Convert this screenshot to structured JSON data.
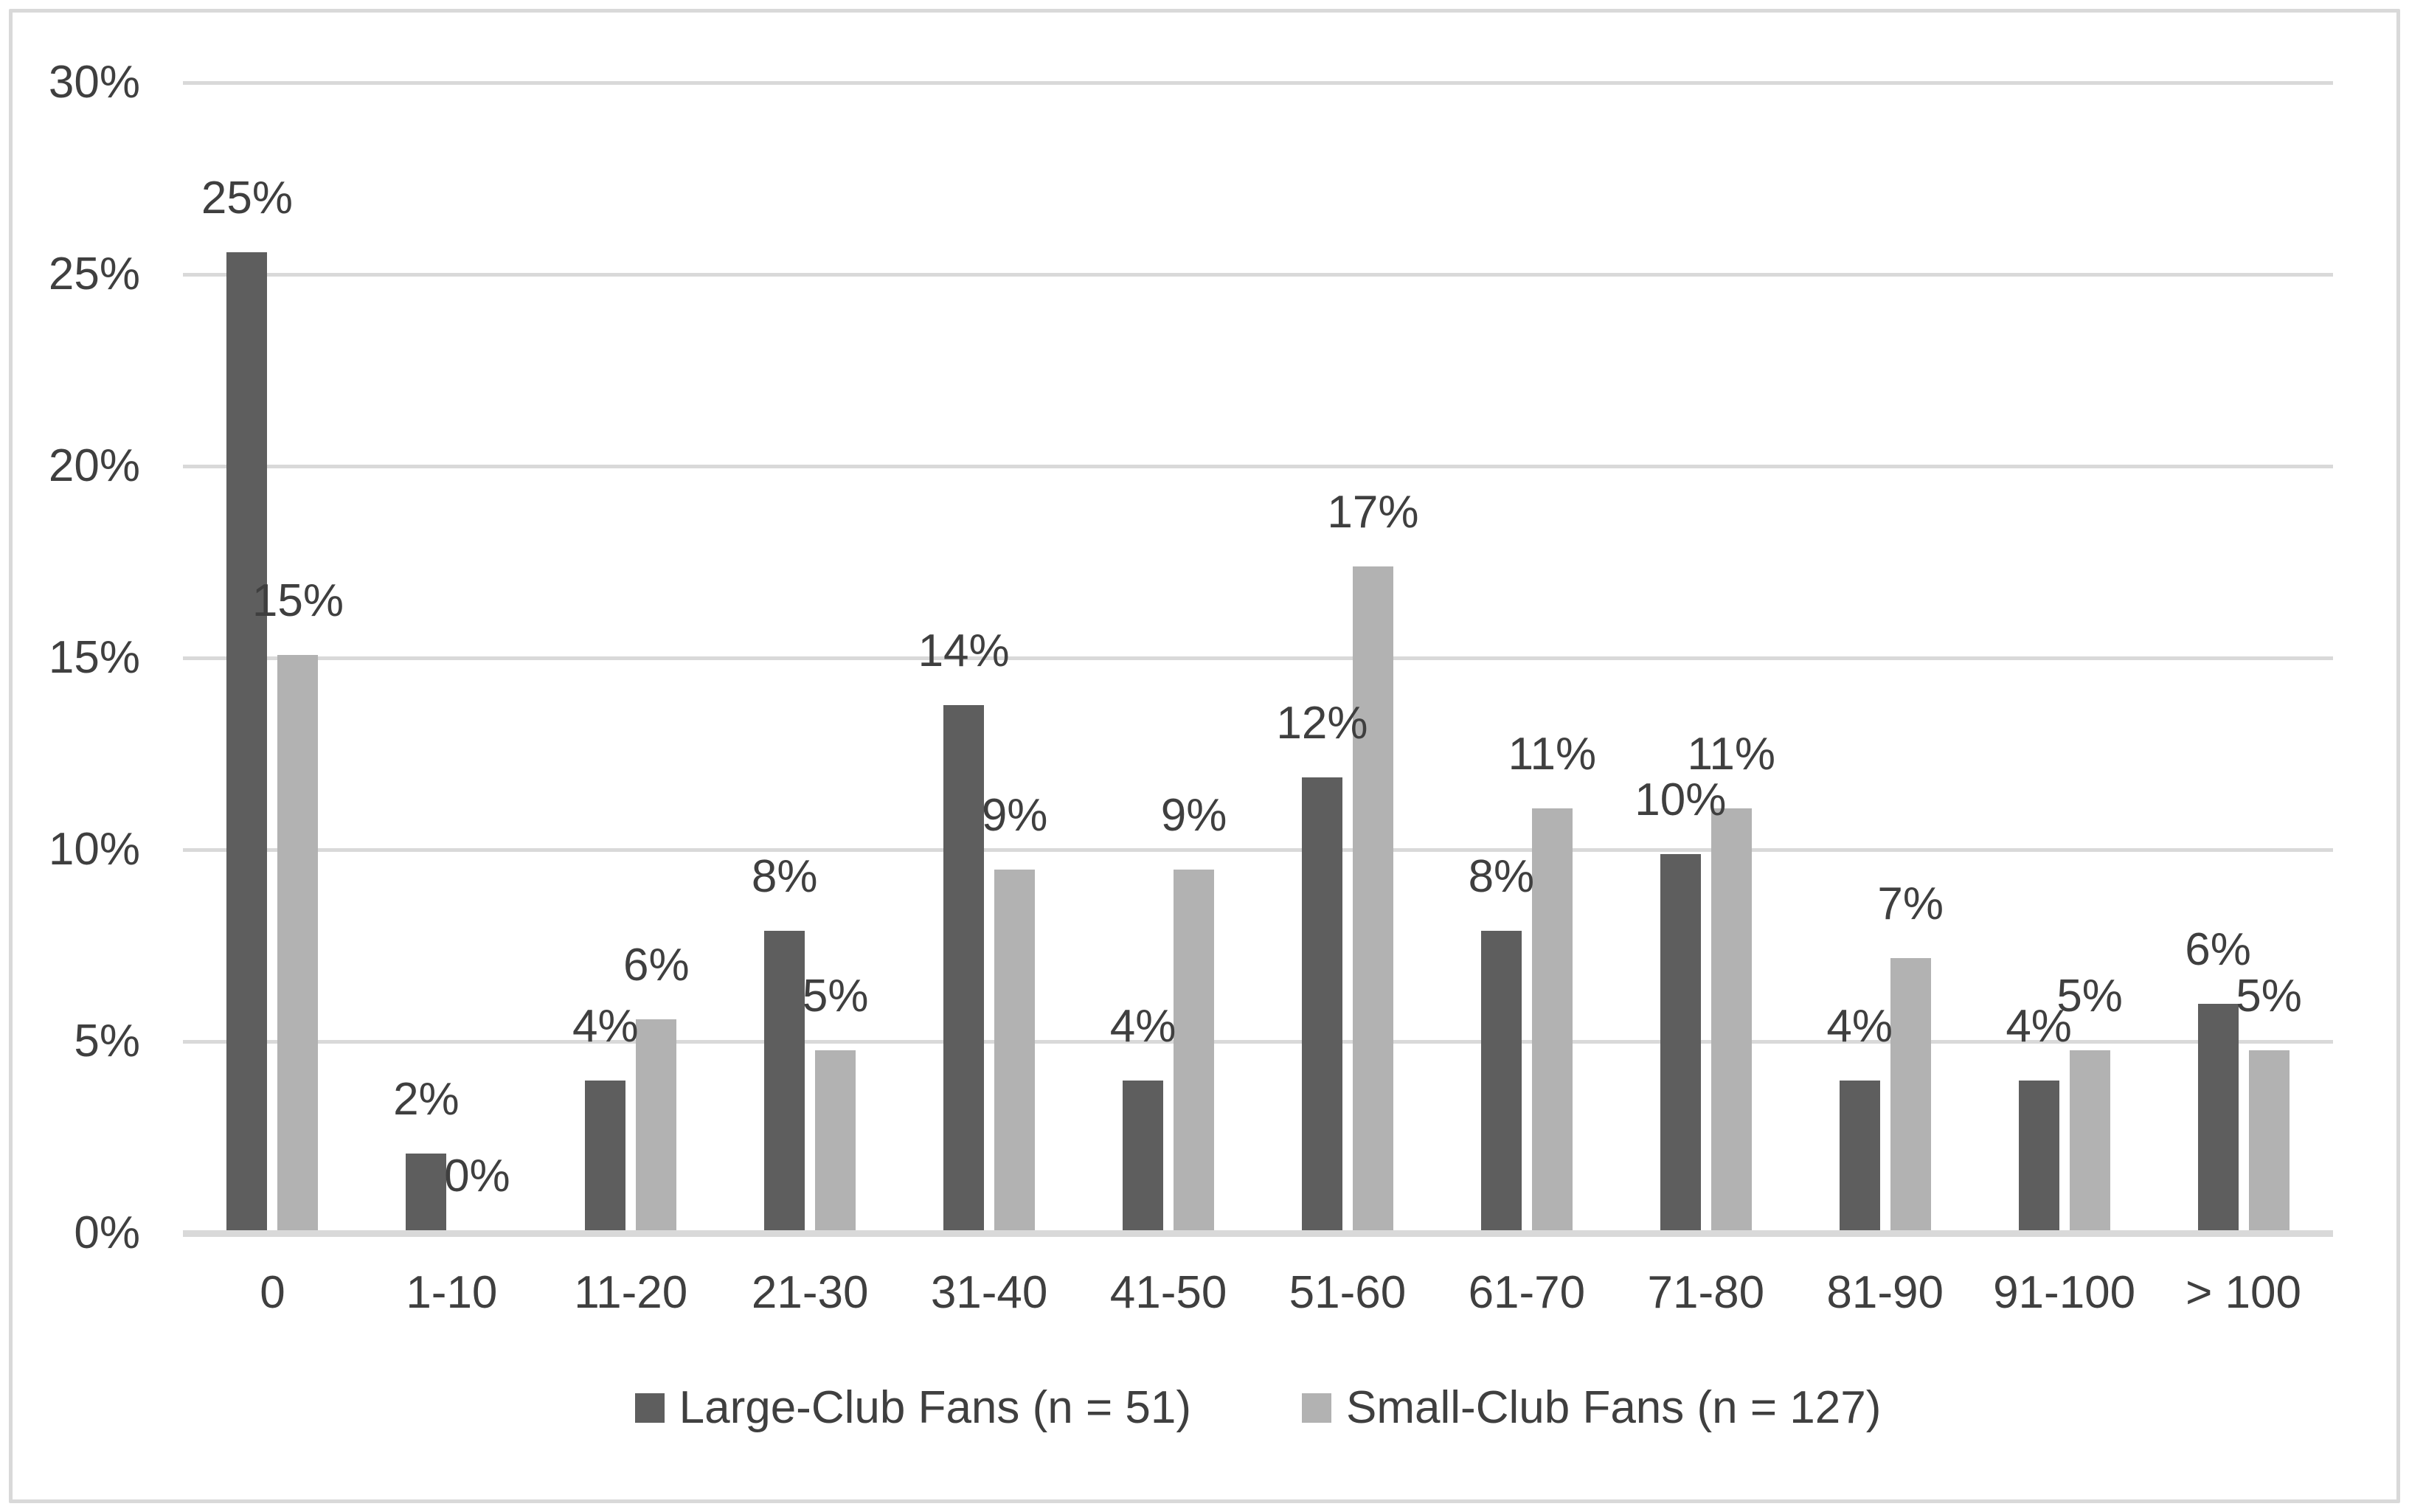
{
  "chart_data": {
    "type": "bar",
    "categories": [
      "0",
      "1-10",
      "11-20",
      "21-30",
      "31-40",
      "41-50",
      "51-60",
      "61-70",
      "71-80",
      "81-90",
      "91-100",
      "> 100"
    ],
    "series": [
      {
        "name": "Large-Club Fans (n = 51)",
        "color": "#5e5e5e",
        "values": [
          25.5,
          2.0,
          3.9,
          7.8,
          13.7,
          3.9,
          11.8,
          7.8,
          9.8,
          3.9,
          3.9,
          5.9
        ],
        "labels": [
          "25%",
          "2%",
          "4%",
          "8%",
          "14%",
          "4%",
          "12%",
          "8%",
          "10%",
          "4%",
          "4%",
          "6%"
        ]
      },
      {
        "name": "Small-Club Fans (n = 127)",
        "color": "#b2b2b2",
        "values": [
          15.0,
          0.0,
          5.5,
          4.7,
          9.4,
          9.4,
          17.3,
          11.0,
          11.0,
          7.1,
          4.7,
          4.7
        ],
        "labels": [
          "15%",
          "0%",
          "6%",
          "5%",
          "9%",
          "9%",
          "17%",
          "11%",
          "11%",
          "7%",
          "5%",
          "5%"
        ]
      }
    ],
    "y_axis": {
      "min": 0,
      "max": 30,
      "step": 5,
      "tick_labels": [
        "0%",
        "5%",
        "10%",
        "15%",
        "20%",
        "25%",
        "30%"
      ]
    },
    "grid": true,
    "legend_position": "bottom",
    "colors": {
      "background": "#ffffff",
      "border": "#d9d9d9",
      "gridline": "#d9d9d9",
      "axis_line": "#d9d9d9",
      "text": "#3f3f3f"
    }
  }
}
